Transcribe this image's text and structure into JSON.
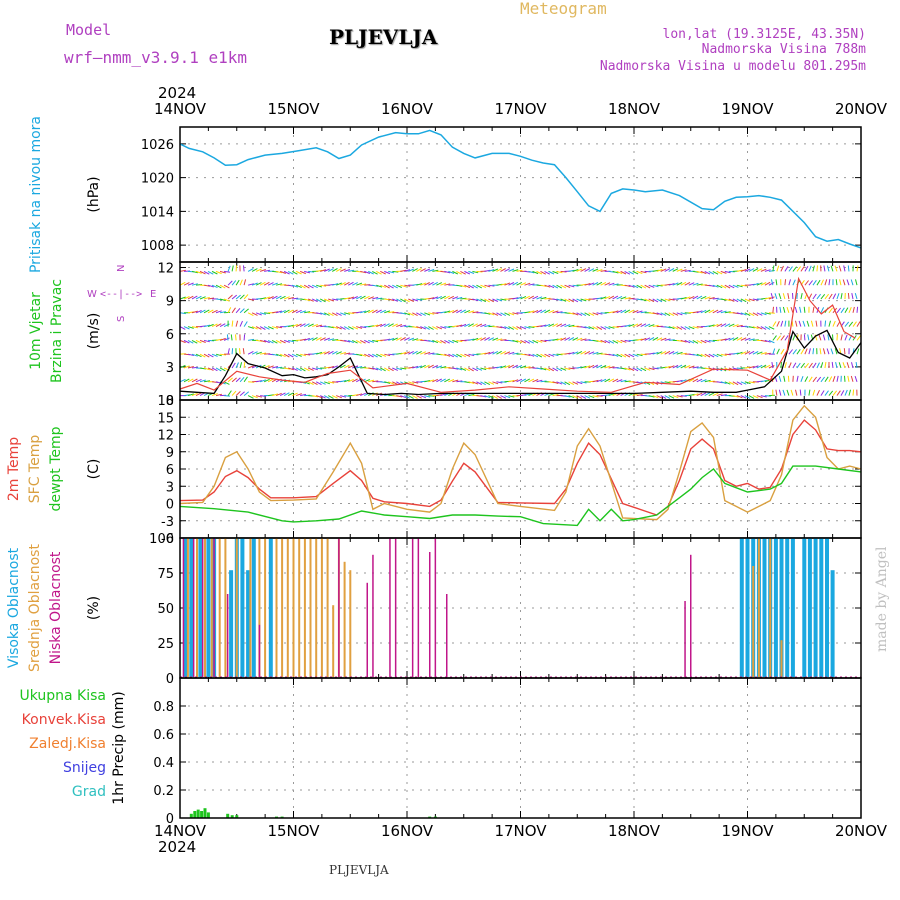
{
  "header": {
    "model_label": "Model",
    "model_value": "wrf—nmm_v3.9.1  e1km",
    "station": "PLJEVLJA",
    "product": "Meteogram",
    "coords": "lon,lat (19.3125E, 43.35N)",
    "elevation": "Nadmorska Visina 788m",
    "model_elevation": "Nadmorska Visina u modelu 801.295m"
  },
  "footer": {
    "station": "PLJEVLJA",
    "credit": "made by Angel"
  },
  "colors": {
    "pressure": "#1ba8e0",
    "temp2m": "#e8423a",
    "sfc": "#d9a040",
    "dewpt": "#1ec41e",
    "high_cloud": "#1ba8e0",
    "mid_cloud": "#e0a040",
    "low_cloud": "#c0168a",
    "total_precip": "#1ec41e",
    "conv_precip": "#e8423a",
    "frz_precip": "#f08030",
    "snow": "#4040e0",
    "hail": "#30c0c0",
    "wind_label": "#1ec41e",
    "wind_dir": "#b040c0",
    "grid": "#9a9a9a"
  },
  "chart_data": {
    "type": "line",
    "x_axis": {
      "year": "2024",
      "ticks": [
        "14NOV",
        "15NOV",
        "16NOV",
        "17NOV",
        "18NOV",
        "19NOV",
        "20NOV"
      ],
      "x_range_days": [
        0,
        6
      ]
    },
    "panels": [
      {
        "id": "pressure",
        "labels": [
          "Pritisak na nivou mora"
        ],
        "unit": "(hPa)",
        "ylim": [
          1005,
          1029
        ],
        "yticks": [
          1008,
          1014,
          1020,
          1026
        ],
        "series": [
          {
            "x": [
              0,
              0.08,
              0.2,
              0.3,
              0.4,
              0.5,
              0.6,
              0.75,
              0.9,
              1.05,
              1.2,
              1.3,
              1.4,
              1.5,
              1.6,
              1.75,
              1.9,
              2.0,
              2.1,
              2.2,
              2.3,
              2.4,
              2.5,
              2.6,
              2.75,
              2.9,
              3.0,
              3.1,
              3.2,
              3.3,
              3.4,
              3.5,
              3.6,
              3.7,
              3.8,
              3.9,
              4.0,
              4.1,
              4.25,
              4.4,
              4.6,
              4.7,
              4.8,
              4.9,
              5.0,
              5.1,
              5.2,
              5.3,
              5.5,
              5.6,
              5.7,
              5.8,
              5.9,
              6.0
            ],
            "y": [
              1026,
              1025.2,
              1024.6,
              1023.5,
              1022.2,
              1022.3,
              1023.2,
              1024.0,
              1024.3,
              1024.8,
              1025.3,
              1024.6,
              1023.4,
              1024.0,
              1025.8,
              1027.2,
              1028.0,
              1027.8,
              1027.8,
              1028.4,
              1027.6,
              1025.4,
              1024.3,
              1023.5,
              1024.3,
              1024.3,
              1023.8,
              1023.1,
              1022.6,
              1022.3,
              1020.0,
              1017.5,
              1015.0,
              1014.0,
              1017.2,
              1018.0,
              1017.8,
              1017.5,
              1017.8,
              1016.8,
              1014.5,
              1014.3,
              1015.8,
              1016.5,
              1016.6,
              1016.8,
              1016.5,
              1016.0,
              1012.0,
              1009.5,
              1008.7,
              1009.0,
              1008.2,
              1007.5
            ]
          }
        ]
      },
      {
        "id": "wind",
        "labels": [
          "10m Vjetar",
          "Brzina i Pravac"
        ],
        "unit": "(m/s)",
        "compass": {
          "n": "N",
          "w": "W",
          "e": "E",
          "s": "S",
          "arrows": "<--|-->"
        },
        "ylim": [
          0,
          12.5
        ],
        "yticks": [
          0,
          3,
          6,
          9,
          12
        ],
        "series": [
          {
            "name": "speed",
            "x": [
              0,
              0.15,
              0.3,
              0.4,
              0.5,
              0.6,
              0.75,
              0.9,
              1.0,
              1.1,
              1.2,
              1.3,
              1.4,
              1.5,
              1.65,
              1.8,
              1.95,
              2.1,
              2.3,
              2.5,
              2.75,
              3.0,
              3.25,
              3.5,
              3.75,
              4.0,
              4.25,
              4.5,
              4.7,
              4.9,
              5.0,
              5.15,
              5.3,
              5.4,
              5.5,
              5.6,
              5.7,
              5.8,
              5.9,
              6.0
            ],
            "y": [
              0.8,
              0.7,
              0.6,
              2.2,
              4.2,
              3.3,
              2.9,
              2.2,
              2.3,
              2.0,
              2.1,
              2.3,
              3.0,
              3.8,
              0.6,
              0.5,
              0.6,
              0.5,
              0.6,
              0.6,
              0.6,
              0.6,
              0.6,
              0.6,
              0.6,
              0.6,
              0.7,
              0.8,
              0.7,
              0.7,
              0.9,
              1.2,
              2.6,
              6.2,
              4.7,
              5.8,
              6.3,
              4.3,
              3.8,
              5.2
            ]
          },
          {
            "name": "gusts",
            "x": [
              0,
              0.15,
              0.3,
              0.5,
              0.7,
              0.9,
              1.1,
              1.3,
              1.5,
              1.7,
              2.0,
              2.3,
              2.6,
              2.9,
              3.2,
              3.5,
              3.8,
              4.1,
              4.4,
              4.7,
              5.0,
              5.2,
              5.35,
              5.45,
              5.55,
              5.65,
              5.75,
              5.85,
              5.95
            ],
            "y": [
              1.0,
              1.5,
              0.9,
              2.6,
              2.1,
              1.8,
              1.6,
              2.4,
              2.7,
              1.1,
              1.5,
              0.7,
              0.9,
              1.2,
              1.0,
              0.8,
              0.7,
              1.6,
              1.4,
              2.8,
              2.7,
              1.8,
              4.5,
              11.0,
              9.0,
              7.8,
              8.6,
              6.2,
              5.6
            ]
          }
        ]
      },
      {
        "id": "temperature",
        "labels": [
          "2m Temp",
          "SFC Temp",
          "dewpt Temp"
        ],
        "unit": "(C)",
        "ylim": [
          -6,
          18
        ],
        "yticks": [
          -6,
          -3,
          0,
          3,
          6,
          9,
          12,
          15,
          18
        ],
        "series": [
          {
            "name": "2m",
            "x": [
              0,
              0.2,
              0.3,
              0.4,
              0.5,
              0.6,
              0.7,
              0.8,
              1.0,
              1.2,
              1.35,
              1.5,
              1.6,
              1.7,
              1.8,
              2.0,
              2.2,
              2.3,
              2.4,
              2.5,
              2.6,
              2.8,
              3.0,
              3.3,
              3.4,
              3.5,
              3.6,
              3.7,
              3.9,
              4.2,
              4.3,
              4.4,
              4.5,
              4.6,
              4.7,
              4.8,
              4.9,
              5.0,
              5.1,
              5.2,
              5.3,
              5.4,
              5.5,
              5.6,
              5.7,
              5.8,
              5.9,
              6.0
            ],
            "y": [
              0.5,
              0.6,
              2.0,
              4.7,
              5.7,
              4.5,
              2.5,
              1.0,
              1.0,
              1.2,
              3.5,
              5.7,
              4.0,
              0.9,
              0.3,
              0.0,
              -0.5,
              0.6,
              3.9,
              7.0,
              5.5,
              0.2,
              0.1,
              0.0,
              2.5,
              7.0,
              10.5,
              8.5,
              0.0,
              -2.0,
              -0.5,
              4.0,
              9.5,
              11.2,
              9.5,
              4.0,
              3.0,
              3.5,
              2.5,
              2.8,
              6.0,
              12.0,
              14.5,
              12.8,
              9.5,
              9.2,
              9.2,
              9.0
            ]
          },
          {
            "name": "SFC",
            "x": [
              0,
              0.2,
              0.3,
              0.4,
              0.5,
              0.6,
              0.7,
              0.8,
              1.0,
              1.2,
              1.35,
              1.5,
              1.6,
              1.7,
              1.8,
              2.0,
              2.2,
              2.3,
              2.4,
              2.5,
              2.6,
              2.8,
              3.0,
              3.3,
              3.4,
              3.5,
              3.6,
              3.7,
              3.9,
              4.2,
              4.3,
              4.4,
              4.5,
              4.6,
              4.7,
              4.8,
              4.9,
              5.0,
              5.1,
              5.2,
              5.3,
              5.4,
              5.5,
              5.6,
              5.7,
              5.8,
              5.9,
              6.0
            ],
            "y": [
              0.0,
              0.2,
              3.0,
              8.0,
              9.0,
              6.0,
              2.0,
              0.5,
              0.6,
              0.8,
              5.5,
              10.5,
              7.0,
              -1.0,
              0.0,
              -1.0,
              -1.5,
              0.0,
              6.0,
              10.5,
              8.5,
              0.0,
              -0.5,
              -1.2,
              2.0,
              10.0,
              13.0,
              10.0,
              -2.5,
              -2.8,
              -1.0,
              5.5,
              12.5,
              14.0,
              11.5,
              0.5,
              -0.5,
              -1.5,
              -0.5,
              0.5,
              5.0,
              14.5,
              17.0,
              15.0,
              8.0,
              6.0,
              6.5,
              6.0
            ]
          },
          {
            "name": "dewpt",
            "x": [
              0,
              0.3,
              0.6,
              0.9,
              1.0,
              1.2,
              1.4,
              1.6,
              1.8,
              2.0,
              2.2,
              2.4,
              2.6,
              2.8,
              3.0,
              3.2,
              3.3,
              3.5,
              3.6,
              3.7,
              3.8,
              3.9,
              4.0,
              4.2,
              4.4,
              4.5,
              4.6,
              4.7,
              4.8,
              5.0,
              5.2,
              5.3,
              5.4,
              5.6,
              5.8,
              6.0
            ],
            "y": [
              -0.5,
              -0.9,
              -1.5,
              -3.0,
              -3.2,
              -3.0,
              -2.7,
              -1.3,
              -2.0,
              -2.3,
              -2.6,
              -2.0,
              -2.0,
              -2.2,
              -2.3,
              -3.5,
              -3.6,
              -3.8,
              -1.0,
              -3.0,
              -1.0,
              -3.0,
              -2.8,
              -2.0,
              1.0,
              2.5,
              4.5,
              6.0,
              3.5,
              2.0,
              2.5,
              3.5,
              6.5,
              6.5,
              6.0,
              5.5
            ]
          }
        ]
      },
      {
        "id": "cloud",
        "labels": [
          "Visoka Oblacnost",
          "Srednja Oblacnost",
          "Niska Oblacnost"
        ],
        "unit": "(%)",
        "ylim": [
          0,
          100
        ],
        "yticks": [
          0,
          25,
          50,
          75,
          100
        ],
        "high": {
          "x": [
            0.05,
            0.1,
            0.18,
            0.25,
            0.3,
            0.45,
            0.5,
            0.55,
            0.6,
            0.65,
            0.8,
            4.95,
            5.0,
            5.05,
            5.1,
            5.15,
            5.2,
            5.25,
            5.3,
            5.35,
            5.4,
            5.5,
            5.55,
            5.6,
            5.65,
            5.7,
            5.75
          ],
          "y": [
            100,
            100,
            100,
            100,
            100,
            77,
            100,
            100,
            77,
            100,
            100,
            100,
            100,
            100,
            100,
            100,
            100,
            100,
            100,
            100,
            100,
            100,
            100,
            100,
            100,
            100,
            77
          ]
        },
        "mid": {
          "x": [
            0.07,
            0.15,
            0.22,
            0.28,
            0.35,
            0.4,
            0.5,
            0.62,
            0.7,
            0.75,
            0.85,
            0.9,
            0.95,
            1.0,
            1.05,
            1.1,
            1.15,
            1.2,
            1.25,
            1.3,
            1.35,
            1.4,
            1.45,
            1.5,
            5.05,
            5.1,
            5.2,
            5.3
          ],
          "y": [
            100,
            100,
            100,
            100,
            100,
            100,
            100,
            100,
            100,
            100,
            100,
            100,
            100,
            100,
            100,
            100,
            100,
            100,
            100,
            100,
            52,
            100,
            83,
            77,
            80,
            100,
            100,
            27
          ]
        },
        "low": {
          "x": [
            0.03,
            0.12,
            0.2,
            0.3,
            0.42,
            0.7,
            1.4,
            1.65,
            1.7,
            1.85,
            1.9,
            2.05,
            2.1,
            2.2,
            2.25,
            2.35,
            4.45,
            4.5
          ],
          "y": [
            100,
            100,
            100,
            100,
            60,
            38,
            100,
            68,
            88,
            100,
            100,
            100,
            100,
            90,
            100,
            60,
            55,
            88
          ]
        }
      },
      {
        "id": "precip",
        "labels": [
          "Ukupna Kisa",
          "Konvek.Kisa",
          "Zaledj.Kisa",
          "Snijeg",
          "Grad"
        ],
        "unit": "1hr Precip (mm)",
        "ylim": [
          0,
          1.0
        ],
        "yticks": [
          0,
          0.2,
          0.4,
          0.6,
          0.8
        ],
        "total": {
          "x": [
            0.1,
            0.13,
            0.16,
            0.19,
            0.22,
            0.25,
            0.42,
            0.46,
            0.5,
            0.85,
            0.9,
            2.2,
            2.25
          ],
          "y": [
            0.03,
            0.05,
            0.06,
            0.05,
            0.07,
            0.04,
            0.03,
            0.02,
            0.02,
            0.01,
            0.01,
            0.01,
            0.01
          ]
        }
      }
    ]
  }
}
